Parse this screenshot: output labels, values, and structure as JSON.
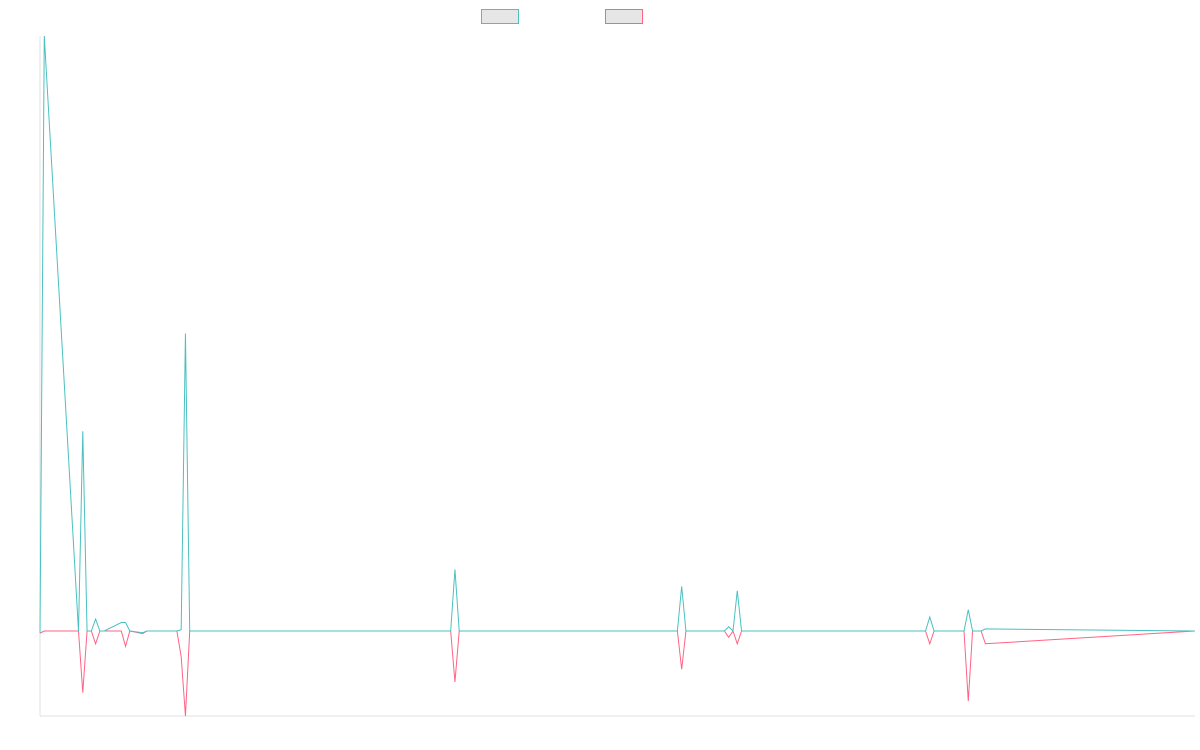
{
  "chart_data": {
    "type": "line",
    "title": "",
    "xlabel": "",
    "ylabel": "",
    "grid": false,
    "legend_position": "top-center",
    "xlim": [
      0,
      270
    ],
    "ylim": [
      -20,
      140
    ],
    "series": [
      {
        "name": "",
        "color": "#4bc0c0",
        "x": [
          0,
          1,
          9,
          10,
          11,
          12,
          13,
          14,
          15,
          19,
          20,
          21,
          24,
          25,
          32,
          33,
          34,
          35,
          40,
          53,
          96,
          97,
          98,
          149,
          150,
          151,
          160,
          161,
          162,
          163,
          164,
          207,
          208,
          209,
          216,
          217,
          218,
          220,
          221,
          270
        ],
        "values": [
          -0.5,
          140,
          0,
          47,
          0,
          0,
          2.8,
          0,
          0,
          2,
          2,
          0,
          -0.4,
          0,
          0,
          0.3,
          70,
          0,
          0,
          0,
          0,
          14.5,
          0,
          0,
          10.5,
          0,
          0,
          1,
          0,
          9.5,
          0,
          0,
          3.3,
          0,
          0,
          5,
          0,
          0,
          0.5,
          0
        ]
      },
      {
        "name": "",
        "color": "#ff6384",
        "x": [
          0,
          1,
          9,
          10,
          11,
          12,
          13,
          14,
          15,
          19,
          20,
          21,
          24,
          25,
          32,
          33,
          34,
          35,
          40,
          53,
          96,
          97,
          98,
          149,
          150,
          151,
          160,
          161,
          162,
          163,
          164,
          207,
          208,
          209,
          216,
          217,
          218,
          220,
          221,
          270
        ],
        "values": [
          -0.5,
          0,
          0,
          -14.5,
          0,
          0,
          -3,
          0,
          0,
          0,
          -3.6,
          0,
          -0.6,
          0,
          0,
          -6,
          -20,
          0,
          0,
          0,
          0,
          -12,
          0,
          0,
          -9,
          0,
          0,
          -1.5,
          0,
          -3,
          0,
          0,
          -3,
          0,
          0,
          -16.5,
          0,
          0,
          -3,
          0
        ]
      }
    ]
  }
}
